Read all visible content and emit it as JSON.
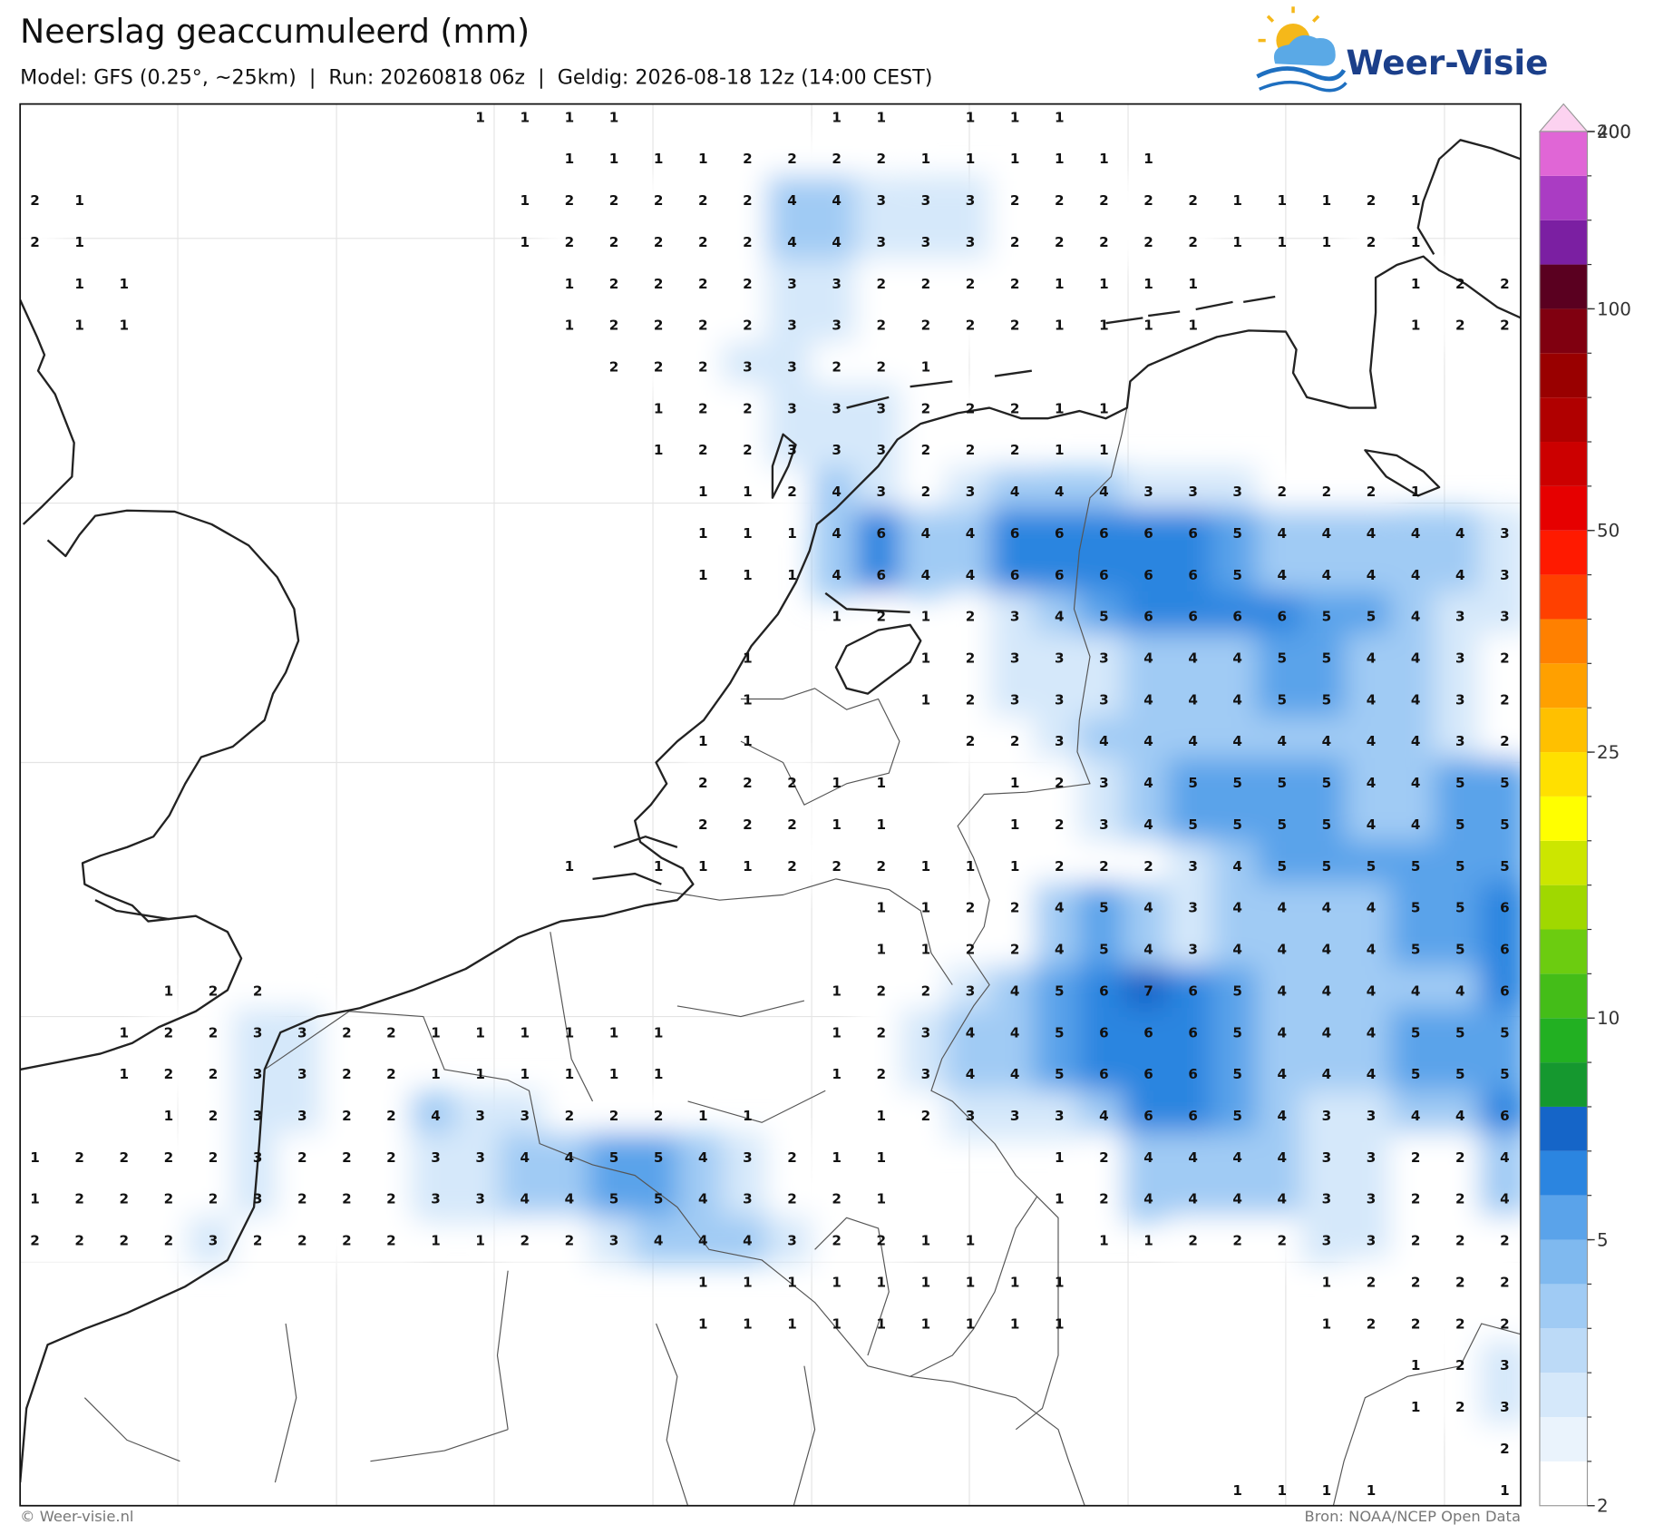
{
  "header": {
    "title": "Neerslag geaccumuleerd (mm)",
    "subtitle": "Model: GFS (0.25°, ~25km)  |  Run: 20260818 06z  |  Geldig: 2026-08-18 12z (14:00 CEST)",
    "logo": "Weer-Visie"
  },
  "map": {
    "grid": [
      [
        null,
        null,
        null,
        null,
        null,
        null,
        null,
        null,
        null,
        null,
        1,
        1,
        1,
        1,
        null,
        null,
        null,
        null,
        1,
        1,
        null,
        1,
        1,
        1,
        null,
        null,
        null,
        null,
        null,
        null,
        null,
        null,
        null,
        null
      ],
      [
        null,
        null,
        null,
        null,
        null,
        null,
        null,
        null,
        null,
        null,
        null,
        null,
        1,
        1,
        1,
        1,
        2,
        2,
        2,
        2,
        1,
        1,
        1,
        1,
        1,
        1,
        null,
        null,
        null,
        null,
        null,
        null,
        null,
        null
      ],
      [
        2,
        1,
        null,
        null,
        null,
        null,
        null,
        null,
        null,
        null,
        null,
        1,
        2,
        2,
        2,
        2,
        2,
        4,
        4,
        3,
        3,
        3,
        2,
        2,
        2,
        2,
        2,
        1,
        1,
        1,
        2,
        1,
        null,
        null
      ],
      [
        2,
        1,
        null,
        null,
        null,
        null,
        null,
        null,
        null,
        null,
        null,
        1,
        2,
        2,
        2,
        2,
        2,
        4,
        4,
        3,
        3,
        3,
        2,
        2,
        2,
        2,
        2,
        1,
        1,
        1,
        2,
        1,
        null,
        null
      ],
      [
        null,
        1,
        1,
        null,
        null,
        null,
        null,
        null,
        null,
        null,
        null,
        null,
        1,
        2,
        2,
        2,
        2,
        3,
        3,
        2,
        2,
        2,
        2,
        1,
        1,
        1,
        1,
        null,
        null,
        null,
        null,
        1,
        2,
        2
      ],
      [
        null,
        1,
        1,
        null,
        null,
        null,
        null,
        null,
        null,
        null,
        null,
        null,
        1,
        2,
        2,
        2,
        2,
        3,
        3,
        2,
        2,
        2,
        2,
        1,
        1,
        1,
        1,
        null,
        null,
        null,
        null,
        1,
        2,
        2
      ],
      [
        null,
        null,
        null,
        null,
        null,
        null,
        null,
        null,
        null,
        null,
        null,
        null,
        null,
        2,
        2,
        2,
        3,
        3,
        2,
        2,
        1,
        null,
        null,
        null,
        null,
        null,
        null,
        null,
        null,
        null,
        null,
        null,
        null,
        null
      ],
      [
        null,
        null,
        null,
        null,
        null,
        null,
        null,
        null,
        null,
        null,
        null,
        null,
        null,
        null,
        1,
        2,
        2,
        3,
        3,
        3,
        2,
        2,
        2,
        1,
        1,
        null,
        null,
        null,
        null,
        null,
        null,
        null,
        null,
        null
      ],
      [
        null,
        null,
        null,
        null,
        null,
        null,
        null,
        null,
        null,
        null,
        null,
        null,
        null,
        null,
        1,
        2,
        2,
        3,
        3,
        3,
        2,
        2,
        2,
        1,
        1,
        null,
        null,
        null,
        null,
        null,
        null,
        null,
        null,
        null
      ],
      [
        null,
        null,
        null,
        null,
        null,
        null,
        null,
        null,
        null,
        null,
        null,
        null,
        null,
        null,
        null,
        1,
        1,
        2,
        4,
        3,
        2,
        3,
        4,
        4,
        4,
        3,
        3,
        3,
        2,
        2,
        2,
        1,
        null,
        null
      ],
      [
        null,
        null,
        null,
        null,
        null,
        null,
        null,
        null,
        null,
        null,
        null,
        null,
        null,
        null,
        null,
        1,
        1,
        1,
        4,
        6,
        4,
        4,
        6,
        6,
        6,
        6,
        6,
        5,
        4,
        4,
        4,
        4,
        4,
        3
      ],
      [
        null,
        null,
        null,
        null,
        null,
        null,
        null,
        null,
        null,
        null,
        null,
        null,
        null,
        null,
        null,
        1,
        1,
        1,
        4,
        6,
        4,
        4,
        6,
        6,
        6,
        6,
        6,
        5,
        4,
        4,
        4,
        4,
        4,
        3
      ],
      [
        null,
        null,
        null,
        null,
        null,
        null,
        null,
        null,
        null,
        null,
        null,
        null,
        null,
        null,
        null,
        null,
        null,
        null,
        1,
        2,
        1,
        2,
        3,
        4,
        5,
        6,
        6,
        6,
        6,
        5,
        5,
        4,
        3,
        3
      ],
      [
        null,
        null,
        null,
        null,
        null,
        null,
        null,
        null,
        null,
        null,
        null,
        null,
        null,
        null,
        null,
        null,
        1,
        null,
        null,
        null,
        1,
        2,
        3,
        3,
        3,
        4,
        4,
        4,
        5,
        5,
        4,
        4,
        3,
        2
      ],
      [
        null,
        null,
        null,
        null,
        null,
        null,
        null,
        null,
        null,
        null,
        null,
        null,
        null,
        null,
        null,
        null,
        1,
        null,
        null,
        null,
        1,
        2,
        3,
        3,
        3,
        4,
        4,
        4,
        5,
        5,
        4,
        4,
        3,
        2
      ],
      [
        null,
        null,
        null,
        null,
        null,
        null,
        null,
        null,
        null,
        null,
        null,
        null,
        null,
        null,
        null,
        1,
        1,
        null,
        null,
        null,
        null,
        2,
        2,
        3,
        4,
        4,
        4,
        4,
        4,
        4,
        4,
        4,
        3,
        2
      ],
      [
        null,
        null,
        null,
        null,
        null,
        null,
        null,
        null,
        null,
        null,
        null,
        null,
        null,
        null,
        null,
        2,
        2,
        2,
        1,
        1,
        null,
        null,
        1,
        2,
        3,
        4,
        5,
        5,
        5,
        5,
        4,
        4,
        5,
        5
      ],
      [
        null,
        null,
        null,
        null,
        null,
        null,
        null,
        null,
        null,
        null,
        null,
        null,
        null,
        null,
        null,
        2,
        2,
        2,
        1,
        1,
        null,
        null,
        1,
        2,
        3,
        4,
        5,
        5,
        5,
        5,
        4,
        4,
        5,
        5
      ],
      [
        null,
        null,
        null,
        null,
        null,
        null,
        null,
        null,
        null,
        null,
        null,
        null,
        1,
        null,
        1,
        1,
        1,
        2,
        2,
        2,
        1,
        1,
        1,
        2,
        2,
        2,
        3,
        4,
        5,
        5,
        5,
        5,
        5,
        5
      ],
      [
        null,
        null,
        null,
        null,
        null,
        null,
        null,
        null,
        null,
        null,
        null,
        null,
        null,
        null,
        null,
        null,
        null,
        null,
        null,
        1,
        1,
        2,
        2,
        4,
        5,
        4,
        3,
        4,
        4,
        4,
        4,
        5,
        5,
        6
      ],
      [
        null,
        null,
        null,
        null,
        null,
        null,
        null,
        null,
        null,
        null,
        null,
        null,
        null,
        null,
        null,
        null,
        null,
        null,
        null,
        1,
        1,
        2,
        2,
        4,
        5,
        4,
        3,
        4,
        4,
        4,
        4,
        5,
        5,
        6
      ],
      [
        null,
        null,
        null,
        1,
        2,
        2,
        null,
        null,
        null,
        null,
        null,
        null,
        null,
        null,
        null,
        null,
        null,
        null,
        1,
        2,
        2,
        3,
        4,
        5,
        6,
        7,
        6,
        5,
        4,
        4,
        4,
        4,
        4,
        6
      ],
      [
        null,
        null,
        1,
        2,
        2,
        3,
        3,
        2,
        2,
        1,
        1,
        1,
        1,
        1,
        1,
        null,
        null,
        null,
        1,
        2,
        3,
        4,
        4,
        5,
        6,
        6,
        6,
        5,
        4,
        4,
        4,
        5,
        5,
        5
      ],
      [
        null,
        null,
        1,
        2,
        2,
        3,
        3,
        2,
        2,
        1,
        1,
        1,
        1,
        1,
        1,
        null,
        null,
        null,
        1,
        2,
        3,
        4,
        4,
        5,
        6,
        6,
        6,
        5,
        4,
        4,
        4,
        5,
        5,
        5
      ],
      [
        null,
        null,
        null,
        1,
        2,
        3,
        3,
        2,
        2,
        4,
        3,
        3,
        2,
        2,
        2,
        1,
        1,
        null,
        null,
        1,
        2,
        3,
        3,
        3,
        4,
        6,
        6,
        5,
        4,
        3,
        3,
        4,
        4,
        6
      ],
      [
        1,
        2,
        2,
        2,
        2,
        3,
        2,
        2,
        2,
        3,
        3,
        4,
        4,
        5,
        5,
        4,
        3,
        2,
        1,
        1,
        null,
        null,
        null,
        1,
        2,
        4,
        4,
        4,
        4,
        3,
        3,
        2,
        2,
        4
      ],
      [
        1,
        2,
        2,
        2,
        2,
        3,
        2,
        2,
        2,
        3,
        3,
        4,
        4,
        5,
        5,
        4,
        3,
        2,
        2,
        1,
        null,
        null,
        null,
        1,
        2,
        4,
        4,
        4,
        4,
        3,
        3,
        2,
        2,
        4
      ],
      [
        2,
        2,
        2,
        2,
        3,
        2,
        2,
        2,
        2,
        1,
        1,
        2,
        2,
        3,
        4,
        4,
        4,
        3,
        2,
        2,
        1,
        1,
        null,
        null,
        1,
        1,
        2,
        2,
        2,
        3,
        3,
        2,
        2,
        2
      ],
      [
        null,
        null,
        null,
        null,
        null,
        null,
        null,
        null,
        null,
        null,
        null,
        null,
        null,
        null,
        null,
        1,
        1,
        1,
        1,
        1,
        1,
        1,
        1,
        1,
        null,
        null,
        null,
        null,
        null,
        1,
        2,
        2,
        2,
        2
      ],
      [
        null,
        null,
        null,
        null,
        null,
        null,
        null,
        null,
        null,
        null,
        null,
        null,
        null,
        null,
        null,
        1,
        1,
        1,
        1,
        1,
        1,
        1,
        1,
        1,
        null,
        null,
        null,
        null,
        null,
        1,
        2,
        2,
        2,
        2
      ],
      [
        null,
        null,
        null,
        null,
        null,
        null,
        null,
        null,
        null,
        null,
        null,
        null,
        null,
        null,
        null,
        null,
        null,
        null,
        null,
        null,
        null,
        null,
        null,
        null,
        null,
        null,
        null,
        null,
        null,
        null,
        null,
        1,
        2,
        3
      ],
      [
        null,
        null,
        null,
        null,
        null,
        null,
        null,
        null,
        null,
        null,
        null,
        null,
        null,
        null,
        null,
        null,
        null,
        null,
        null,
        null,
        null,
        null,
        null,
        null,
        null,
        null,
        null,
        null,
        null,
        null,
        null,
        1,
        2,
        3
      ],
      [
        null,
        null,
        null,
        null,
        null,
        null,
        null,
        null,
        null,
        null,
        null,
        null,
        null,
        null,
        null,
        null,
        null,
        null,
        null,
        null,
        null,
        null,
        null,
        null,
        null,
        null,
        null,
        null,
        null,
        null,
        null,
        null,
        null,
        2
      ],
      [
        null,
        null,
        null,
        null,
        null,
        null,
        null,
        null,
        null,
        null,
        null,
        null,
        null,
        null,
        null,
        null,
        null,
        null,
        null,
        null,
        null,
        null,
        null,
        null,
        null,
        null,
        null,
        1,
        1,
        1,
        1,
        null,
        null,
        1
      ]
    ]
  },
  "colorbar": {
    "levels": [
      2,
      2.5,
      3,
      3.5,
      4,
      4.5,
      5,
      6,
      7,
      8,
      9,
      10,
      12,
      14,
      16,
      18,
      20,
      25,
      30,
      35,
      40,
      45,
      50,
      60,
      70,
      80,
      90,
      100,
      125,
      150,
      175,
      200,
      400
    ],
    "colors": [
      "#ffffff",
      "#eaf3fc",
      "#d5e8fa",
      "#bcdaf7",
      "#a0cbf4",
      "#7fb9ef",
      "#5aa3ea",
      "#2b85e0",
      "#1565c8",
      "#15982f",
      "#22b022",
      "#44bd18",
      "#6ccc10",
      "#a0d800",
      "#cce600",
      "#ffff00",
      "#ffe000",
      "#ffc000",
      "#ffa000",
      "#ff8000",
      "#ff4000",
      "#ff1a00",
      "#e60000",
      "#cc0000",
      "#b00000",
      "#990000",
      "#800010",
      "#5a0020",
      "#7b1fa2",
      "#aa3cc3",
      "#e066d6",
      "#fcd2f0"
    ],
    "ticks": [
      2,
      5,
      10,
      25,
      50,
      100,
      200,
      400
    ]
  },
  "footer": {
    "credit": "© Weer-visie.nl",
    "source": "Bron: NOAA/NCEP Open Data"
  }
}
